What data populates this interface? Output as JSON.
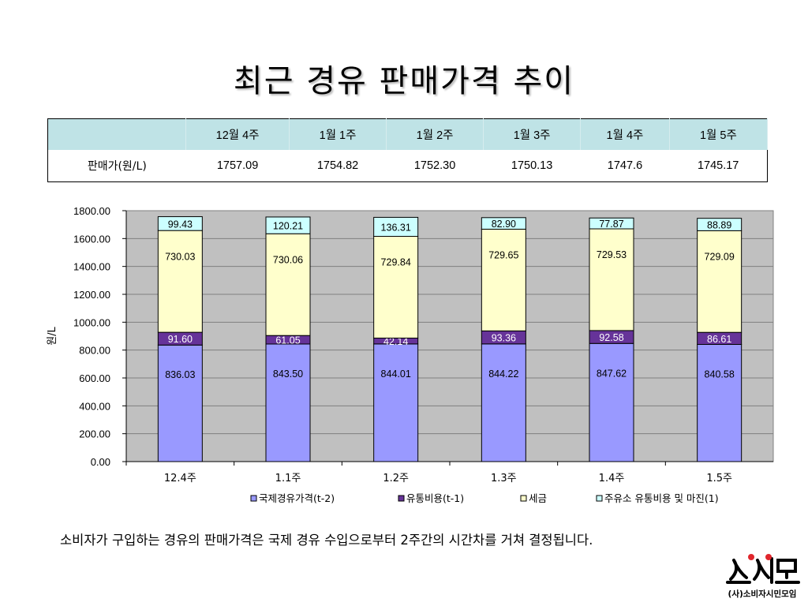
{
  "title": "최근 경유 판매가격 추이",
  "table": {
    "corner": "",
    "headers": [
      "12월 4주",
      "1월 1주",
      "1월 2주",
      "1월 3주",
      "1월 4주",
      "1월 5주"
    ],
    "row_label": "판매가(원/L)",
    "values": [
      "1757.09",
      "1754.82",
      "1752.30",
      "1750.13",
      "1747.6",
      "1745.17"
    ]
  },
  "chart_data": {
    "type": "bar",
    "stacked": true,
    "categories": [
      "12.4주",
      "1.1주",
      "1.2주",
      "1.3주",
      "1.4주",
      "1.5주"
    ],
    "ylabel": "원/L",
    "ylim": [
      0,
      1800
    ],
    "yticks": [
      "0.00",
      "200.00",
      "400.00",
      "600.00",
      "800.00",
      "1000.00",
      "1200.00",
      "1400.00",
      "1600.00",
      "1800.00"
    ],
    "grid": true,
    "legend_position": "bottom",
    "series": [
      {
        "name": "국제경유가격(t-2)",
        "color": "#9999ff",
        "values": [
          836.03,
          843.5,
          844.01,
          844.22,
          847.62,
          840.58
        ],
        "labels": [
          "836.03",
          "843.50",
          "844.01",
          "844.22",
          "847.62",
          "840.58"
        ]
      },
      {
        "name": "유통비용(t-1)",
        "color": "#663399",
        "values": [
          91.6,
          61.05,
          42.14,
          93.36,
          92.58,
          86.61
        ],
        "labels": [
          "91.60",
          "61.05",
          "42.14",
          "93.36",
          "92.58",
          "86.61"
        ]
      },
      {
        "name": "세금",
        "color": "#ffffcc",
        "values": [
          730.03,
          730.06,
          729.84,
          729.65,
          729.53,
          729.09
        ],
        "labels": [
          "730.03",
          "730.06",
          "729.84",
          "729.65",
          "729.53",
          "729.09"
        ]
      },
      {
        "name": "주유소 유통비용 및 마진(1)",
        "color": "#ccffff",
        "values": [
          99.43,
          120.21,
          136.31,
          82.9,
          77.87,
          88.89
        ],
        "labels": [
          "99.43",
          "120.21",
          "136.31",
          "82.90",
          "77.87",
          "88.89"
        ]
      }
    ]
  },
  "footnote": "소비자가 구입하는 경유의 판매가격은 국제 경유 수입으로부터 2주간의 시간차를 거쳐 결정됩니다.",
  "logo": {
    "mark": "소시모",
    "text": "(사)소비자시민모임",
    "accent": "#e0262c"
  }
}
